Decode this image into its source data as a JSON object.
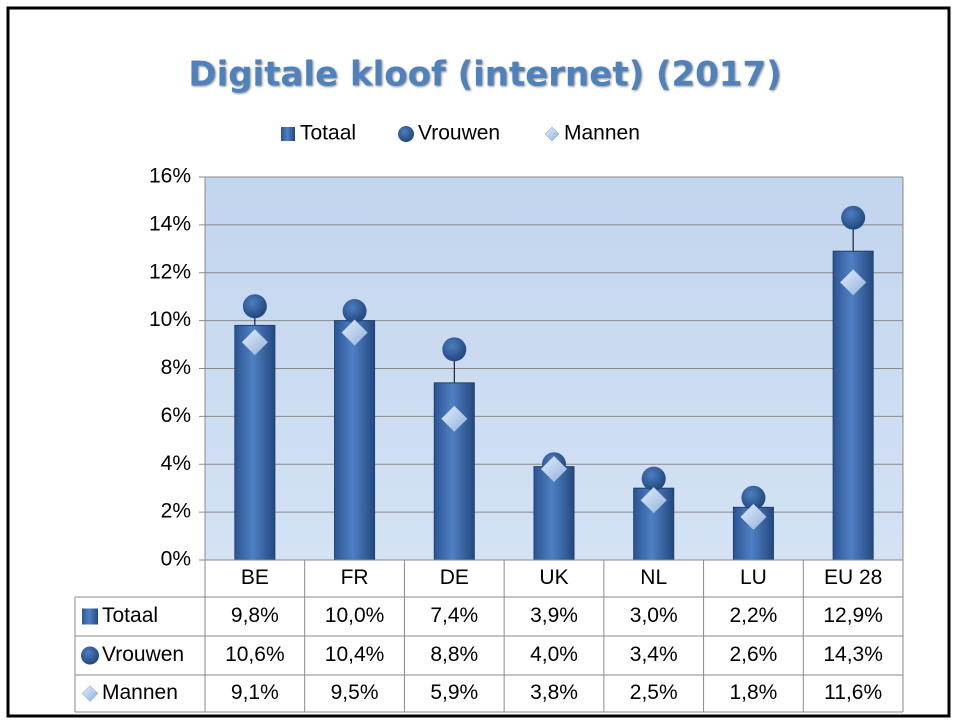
{
  "chart_data": {
    "type": "bar",
    "title": "Digitale kloof (internet) (2017)",
    "categories": [
      "BE",
      "FR",
      "DE",
      "UK",
      "NL",
      "LU",
      "EU 28"
    ],
    "series": [
      {
        "name": "Totaal",
        "color": "#2f5b9b",
        "marker": "bar",
        "values": [
          9.8,
          10.0,
          7.4,
          3.9,
          3.0,
          2.2,
          12.9
        ],
        "value_labels": [
          "9,8%",
          "10,0%",
          "7,4%",
          "3,9%",
          "3,0%",
          "2,2%",
          "12,9%"
        ]
      },
      {
        "name": "Vrouwen",
        "color": "#2a5494",
        "marker": "circle",
        "values": [
          10.6,
          10.4,
          8.8,
          4.0,
          3.4,
          2.6,
          14.3
        ],
        "value_labels": [
          "10,6%",
          "10,4%",
          "8,8%",
          "4,0%",
          "3,4%",
          "2,6%",
          "14,3%"
        ]
      },
      {
        "name": "Mannen",
        "color": "#b9cdea",
        "marker": "diamond",
        "values": [
          9.1,
          9.5,
          5.9,
          3.8,
          2.5,
          1.8,
          11.6
        ],
        "value_labels": [
          "9,1%",
          "9,5%",
          "5,9%",
          "3,8%",
          "2,5%",
          "1,8%",
          "11,6%"
        ]
      }
    ],
    "ylim": [
      0,
      16
    ],
    "yticks": [
      {
        "value": 0,
        "label": "0%"
      },
      {
        "value": 2,
        "label": "2%"
      },
      {
        "value": 4,
        "label": "4%"
      },
      {
        "value": 6,
        "label": "6%"
      },
      {
        "value": 8,
        "label": "8%"
      },
      {
        "value": 10,
        "label": "10%"
      },
      {
        "value": 12,
        "label": "12%"
      },
      {
        "value": 14,
        "label": "14%"
      },
      {
        "value": 16,
        "label": "16%"
      }
    ],
    "grid": true,
    "legend": "top",
    "data_table": true
  }
}
